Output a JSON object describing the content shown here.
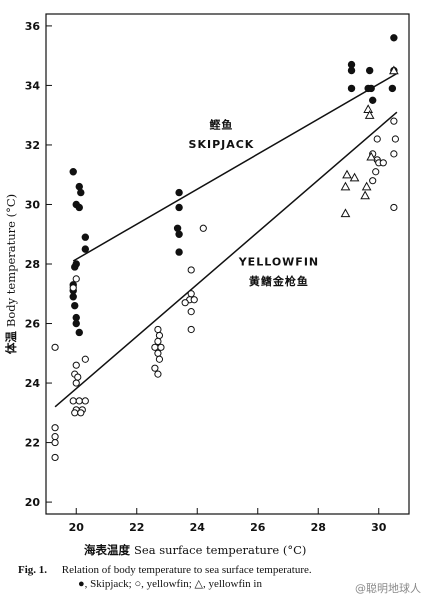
{
  "chart_data": {
    "type": "scatter",
    "title": "",
    "xlabel_cn": "海表温度",
    "xlabel": "Sea surface temperature (°C)",
    "ylabel_cn": "体温",
    "ylabel": "Body temperature (°C)",
    "xlim": [
      19,
      31
    ],
    "ylim": [
      19.6,
      36.4
    ],
    "x_ticks": [
      20,
      22,
      24,
      26,
      28,
      30
    ],
    "y_ticks": [
      20,
      22,
      24,
      26,
      28,
      30,
      32,
      34,
      36
    ],
    "grid": false,
    "series": [
      {
        "name": "Skipjack",
        "marker": "filled-circle",
        "points": [
          [
            19.9,
            31.1
          ],
          [
            20.0,
            30.0
          ],
          [
            20.1,
            30.6
          ],
          [
            20.15,
            30.4
          ],
          [
            20.1,
            29.9
          ],
          [
            20.3,
            28.9
          ],
          [
            20.3,
            28.5
          ],
          [
            20.0,
            28.0
          ],
          [
            19.95,
            27.9
          ],
          [
            19.9,
            27.3
          ],
          [
            19.9,
            27.1
          ],
          [
            19.9,
            26.9
          ],
          [
            19.95,
            26.6
          ],
          [
            20.0,
            26.2
          ],
          [
            20.0,
            26.0
          ],
          [
            20.1,
            25.7
          ],
          [
            23.4,
            30.4
          ],
          [
            23.4,
            29.9
          ],
          [
            23.35,
            29.2
          ],
          [
            23.4,
            29.0
          ],
          [
            23.4,
            28.4
          ],
          [
            29.1,
            34.7
          ],
          [
            29.1,
            34.5
          ],
          [
            29.1,
            33.9
          ],
          [
            29.7,
            34.5
          ],
          [
            29.65,
            33.9
          ],
          [
            29.75,
            33.9
          ],
          [
            29.8,
            33.5
          ],
          [
            30.5,
            35.6
          ],
          [
            30.5,
            34.5
          ],
          [
            30.45,
            33.9
          ]
        ]
      },
      {
        "name": "yellowfin",
        "marker": "open-circle",
        "points": [
          [
            19.3,
            25.2
          ],
          [
            19.3,
            22.5
          ],
          [
            19.3,
            22.2
          ],
          [
            19.3,
            22.0
          ],
          [
            19.3,
            21.5
          ],
          [
            19.9,
            27.2
          ],
          [
            20.0,
            27.5
          ],
          [
            20.3,
            24.8
          ],
          [
            20.0,
            24.6
          ],
          [
            19.95,
            24.3
          ],
          [
            20.05,
            24.2
          ],
          [
            20.0,
            24.0
          ],
          [
            19.9,
            23.4
          ],
          [
            20.1,
            23.4
          ],
          [
            20.3,
            23.4
          ],
          [
            20.0,
            23.1
          ],
          [
            20.2,
            23.1
          ],
          [
            19.95,
            23.0
          ],
          [
            20.15,
            23.0
          ],
          [
            22.7,
            25.8
          ],
          [
            22.75,
            25.6
          ],
          [
            22.7,
            25.4
          ],
          [
            22.6,
            25.2
          ],
          [
            22.8,
            25.2
          ],
          [
            22.7,
            25.0
          ],
          [
            22.75,
            24.8
          ],
          [
            22.6,
            24.5
          ],
          [
            22.7,
            24.3
          ],
          [
            23.8,
            27.8
          ],
          [
            23.8,
            27.0
          ],
          [
            23.75,
            26.8
          ],
          [
            23.9,
            26.8
          ],
          [
            23.6,
            26.7
          ],
          [
            23.8,
            26.4
          ],
          [
            23.8,
            25.8
          ],
          [
            24.2,
            29.2
          ],
          [
            29.8,
            31.7
          ],
          [
            29.95,
            31.5
          ],
          [
            30.0,
            31.4
          ],
          [
            30.15,
            31.4
          ],
          [
            29.9,
            31.1
          ],
          [
            29.8,
            30.8
          ],
          [
            30.5,
            32.8
          ],
          [
            30.55,
            32.2
          ],
          [
            30.5,
            31.7
          ],
          [
            29.95,
            32.2
          ],
          [
            30.5,
            29.9
          ]
        ]
      },
      {
        "name": "yellowfin in",
        "marker": "open-triangle",
        "points": [
          [
            28.95,
            31.0
          ],
          [
            29.2,
            30.9
          ],
          [
            28.9,
            30.6
          ],
          [
            28.9,
            29.7
          ],
          [
            29.55,
            30.3
          ],
          [
            29.6,
            30.6
          ],
          [
            29.75,
            31.6
          ],
          [
            29.65,
            33.2
          ],
          [
            29.7,
            33.0
          ],
          [
            30.5,
            34.5
          ]
        ]
      }
    ],
    "fit_lines": [
      {
        "name": "Skipjack",
        "from": [
          19.9,
          28.1
        ],
        "to": [
          30.6,
          34.4
        ]
      },
      {
        "name": "Yellowfin",
        "from": [
          19.3,
          23.2
        ],
        "to": [
          30.6,
          33.1
        ]
      }
    ],
    "annotations": [
      {
        "text": "鲣鱼",
        "x": 24.8,
        "y": 32.55
      },
      {
        "text": "SKIPJACK",
        "x": 24.8,
        "y": 31.9
      },
      {
        "text": "YELLOWFIN",
        "x": 26.7,
        "y": 27.95
      },
      {
        "text": "黄鳍金枪鱼",
        "x": 26.7,
        "y": 27.3
      }
    ]
  },
  "caption": {
    "fig_label": "Fig. 1.",
    "line1": "Relation of body temperature to sea surface temperature.",
    "line2": "●, Skipjack;  ○, yellowfin;  △, yellowfin in"
  },
  "watermark": "@聪明地球人"
}
